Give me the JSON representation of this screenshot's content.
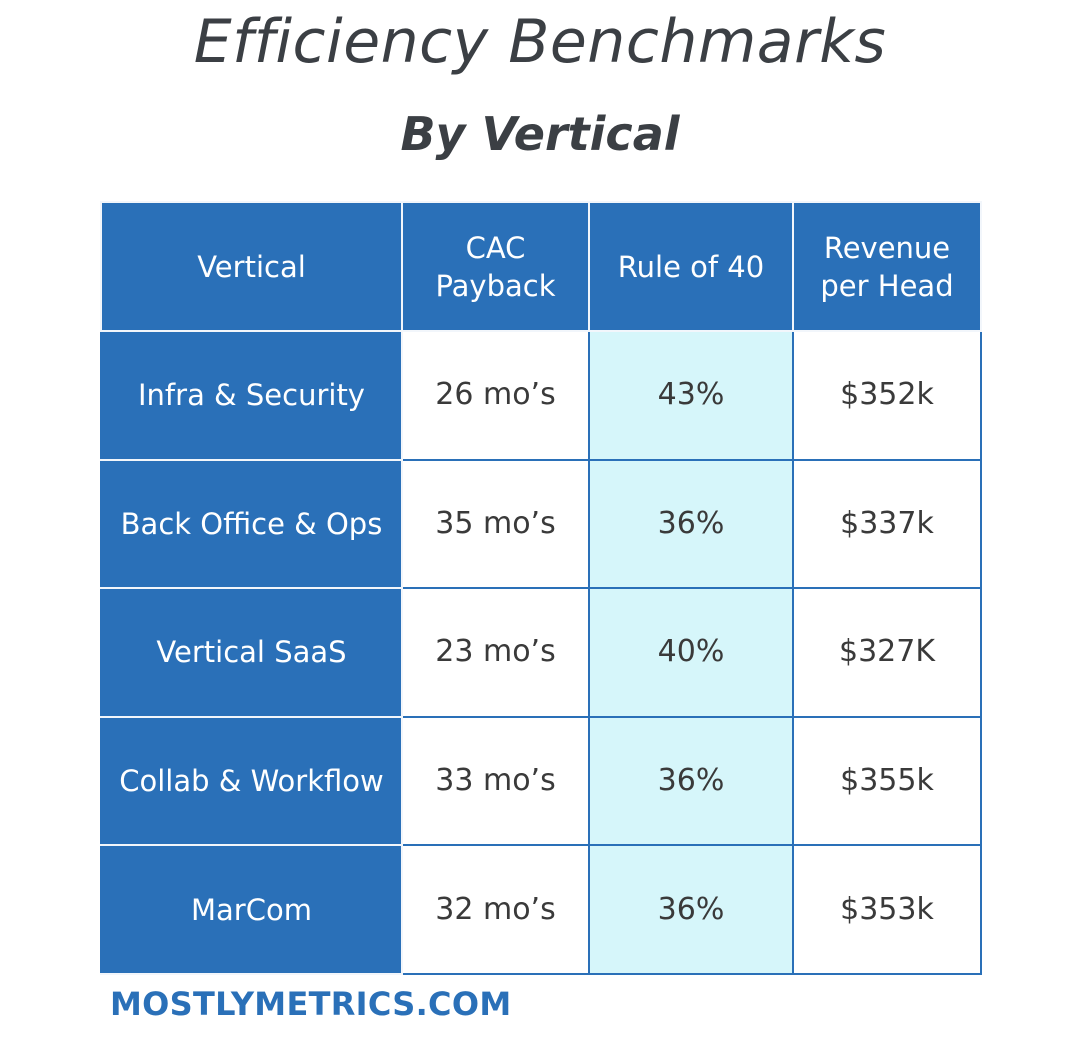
{
  "chart_data": {
    "type": "table",
    "title": "Efficiency Benchmarks",
    "subtitle": "By Vertical",
    "columns": [
      "Vertical",
      "CAC Payback",
      "Rule of 40",
      "Revenue per Head"
    ],
    "rows": [
      {
        "vertical": "Infra & Security",
        "cac_payback": "26 mo’s",
        "rule_of_40": "43%",
        "revenue_per_head": "$352k"
      },
      {
        "vertical": "Back Office & Ops",
        "cac_payback": "35 mo’s",
        "rule_of_40": "36%",
        "revenue_per_head": "$337k"
      },
      {
        "vertical": "Vertical SaaS",
        "cac_payback": "23 mo’s",
        "rule_of_40": "40%",
        "revenue_per_head": "$327K"
      },
      {
        "vertical": "Collab & Workflow",
        "cac_payback": "33 mo’s",
        "rule_of_40": "36%",
        "revenue_per_head": "$355k"
      },
      {
        "vertical": "MarCom",
        "cac_payback": "32 mo’s",
        "rule_of_40": "36%",
        "revenue_per_head": "$353k"
      }
    ],
    "values": {
      "cac_payback_months": [
        26,
        35,
        23,
        33,
        32
      ],
      "rule_of_40_percent": [
        43,
        36,
        40,
        36,
        36
      ],
      "revenue_per_head_k_usd": [
        352,
        337,
        327,
        355,
        353
      ]
    },
    "highlight_column": "Rule of 40",
    "colors": {
      "header_bg": "#2a70b8",
      "highlight_bg": "#d6f6fa",
      "title_text": "#3b3f44",
      "footer_text": "#2a70b8"
    }
  },
  "footer": {
    "brand": "MOSTLYMETRICS.COM"
  }
}
